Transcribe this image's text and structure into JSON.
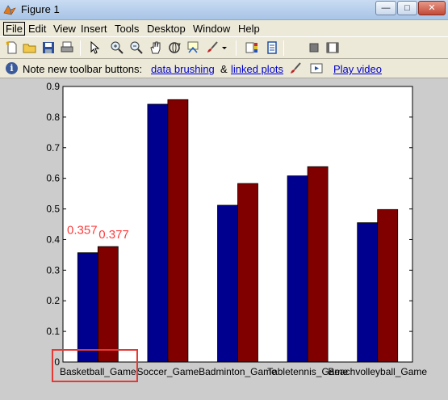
{
  "window": {
    "title": "Figure 1",
    "minimize_label": "—",
    "maximize_label": "□",
    "close_label": "✕"
  },
  "menu": {
    "items": [
      "File",
      "Edit",
      "View",
      "Insert",
      "Tools",
      "Desktop",
      "Window",
      "Help"
    ]
  },
  "toolbar": {
    "icons": [
      "new-figure-icon",
      "open-file-icon",
      "save-icon",
      "print-icon",
      "pointer-icon",
      "zoom-in-icon",
      "zoom-out-icon",
      "pan-hand-icon",
      "rotate-3d-icon",
      "data-cursor-icon",
      "brush-icon",
      "brush-dropdown-icon",
      "colorbar-icon",
      "legend-icon",
      "hide-plot-tools-icon",
      "show-plot-tools-icon"
    ]
  },
  "infobar": {
    "text": "Note new toolbar buttons:",
    "link_brushing": "data brushing",
    "amp": "&",
    "link_linked": "linked plots",
    "link_video": "Play video"
  },
  "chart_data": {
    "type": "bar",
    "categories": [
      "Basketball_Game",
      "Soccer_Game",
      "Badminton_Game",
      "Tabletennis_Game",
      "Beachvolleyball_Game"
    ],
    "series": [
      {
        "color": "#00008f",
        "values": [
          0.357,
          0.842,
          0.512,
          0.608,
          0.455
        ]
      },
      {
        "color": "#800000",
        "values": [
          0.377,
          0.857,
          0.583,
          0.638,
          0.498
        ]
      }
    ],
    "ylim": [
      0,
      0.9
    ],
    "yticks": [
      "0",
      "0.1",
      "0.2",
      "0.3",
      "0.4",
      "0.5",
      "0.6",
      "0.7",
      "0.8",
      "0.9"
    ],
    "annotations": [
      {
        "text": "0.357",
        "color": "#ff3b3b"
      },
      {
        "text": "0.377",
        "color": "#ff3b3b"
      }
    ],
    "grid": false,
    "xlabel": "",
    "ylabel": "",
    "title": ""
  },
  "colors": {
    "highlight": "#e53935",
    "link": "#0000cc"
  }
}
